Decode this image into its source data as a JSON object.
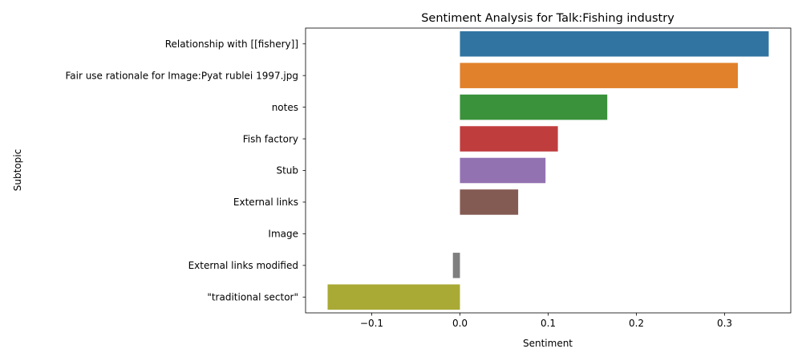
{
  "chart_data": {
    "type": "bar",
    "orientation": "horizontal",
    "title": "Sentiment Analysis for Talk:Fishing industry",
    "xlabel": "Sentiment",
    "ylabel": "Subtopic",
    "xlim": [
      -0.175,
      0.375
    ],
    "xticks": [
      -0.1,
      0.0,
      0.1,
      0.2,
      0.3
    ],
    "xtick_labels": [
      "−0.1",
      "0.0",
      "0.1",
      "0.2",
      "0.3"
    ],
    "grid": false,
    "categories": [
      "Relationship with [[fishery]]",
      "Fair use rationale for Image:Pyat rublei 1997.jpg",
      "notes",
      "Fish factory",
      "Stub",
      "External links",
      "Image",
      "External links modified",
      "\"traditional sector\""
    ],
    "values": [
      0.35,
      0.315,
      0.167,
      0.111,
      0.097,
      0.066,
      0.0,
      -0.008,
      -0.15
    ],
    "colors": [
      "#3274a1",
      "#e1812c",
      "#3a923a",
      "#c03d3e",
      "#9372b2",
      "#845b53",
      "#d684bd",
      "#7f7f7f",
      "#a9aa35"
    ]
  }
}
